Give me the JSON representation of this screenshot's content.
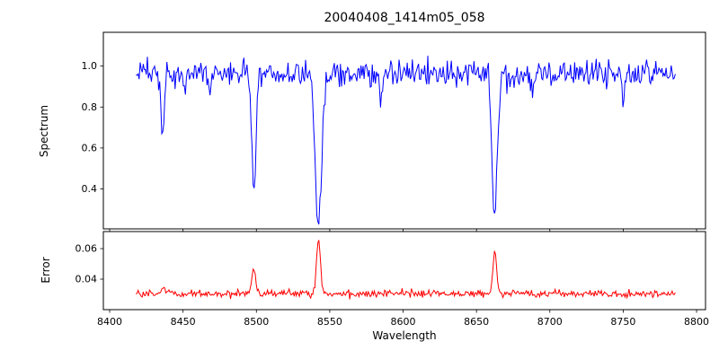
{
  "title": "20040408_1414m05_058",
  "chart_data": {
    "type": "line",
    "xlabel": "Wavelength",
    "xlim": [
      8395.7,
      8806.1
    ],
    "x_range": [
      8418,
      8786
    ],
    "x_step": 0.7,
    "seed": 20040408,
    "grid": false,
    "legend": "none",
    "xticks": [
      {
        "value": 8400,
        "label": "8400"
      },
      {
        "value": 8450,
        "label": "8450"
      },
      {
        "value": 8500,
        "label": "8500"
      },
      {
        "value": 8550,
        "label": "8550"
      },
      {
        "value": 8600,
        "label": "8600"
      },
      {
        "value": 8650,
        "label": "8650"
      },
      {
        "value": 8700,
        "label": "8700"
      },
      {
        "value": 8750,
        "label": "8750"
      },
      {
        "value": 8800,
        "label": "8800"
      }
    ],
    "panels": [
      {
        "name": "spectrum",
        "ylabel": "Spectrum",
        "color": "#0000ff",
        "ylim": [
          0.205,
          1.165
        ],
        "yticks": [
          {
            "value": 0.4,
            "label": "0.4"
          },
          {
            "value": 0.6,
            "label": "0.6"
          },
          {
            "value": 0.8,
            "label": "0.8"
          },
          {
            "value": 1.0,
            "label": "1.0"
          }
        ],
        "baseline": 0.965,
        "noise_std": 0.032,
        "absorption_lines": [
          {
            "center": 8436.0,
            "depth": 0.32,
            "sigma": 1.1
          },
          {
            "center": 8451.0,
            "depth": 0.1,
            "sigma": 0.9
          },
          {
            "center": 8468.0,
            "depth": 0.09,
            "sigma": 0.9
          },
          {
            "center": 8498.3,
            "depth": 0.57,
            "sigma": 1.4
          },
          {
            "center": 8542.3,
            "depth": 0.71,
            "sigma": 2.2
          },
          {
            "center": 8585.0,
            "depth": 0.09,
            "sigma": 1.0
          },
          {
            "center": 8662.4,
            "depth": 0.68,
            "sigma": 1.8
          },
          {
            "center": 8688.0,
            "depth": 0.1,
            "sigma": 0.9
          },
          {
            "center": 8750.0,
            "depth": 0.12,
            "sigma": 1.0
          }
        ]
      },
      {
        "name": "error",
        "ylabel": "Error",
        "color": "#ff0000",
        "ylim": [
          0.02,
          0.0712
        ],
        "yticks": [
          {
            "value": 0.04,
            "label": "0.04"
          },
          {
            "value": 0.06,
            "label": "0.06"
          }
        ],
        "baseline": 0.0305,
        "noise_std": 0.0012,
        "peaks": [
          {
            "center": 8436.0,
            "height": 0.0055,
            "sigma": 1.2
          },
          {
            "center": 8498.3,
            "height": 0.016,
            "sigma": 1.2
          },
          {
            "center": 8542.3,
            "height": 0.036,
            "sigma": 1.3
          },
          {
            "center": 8662.4,
            "height": 0.0265,
            "sigma": 1.3
          }
        ]
      }
    ]
  }
}
